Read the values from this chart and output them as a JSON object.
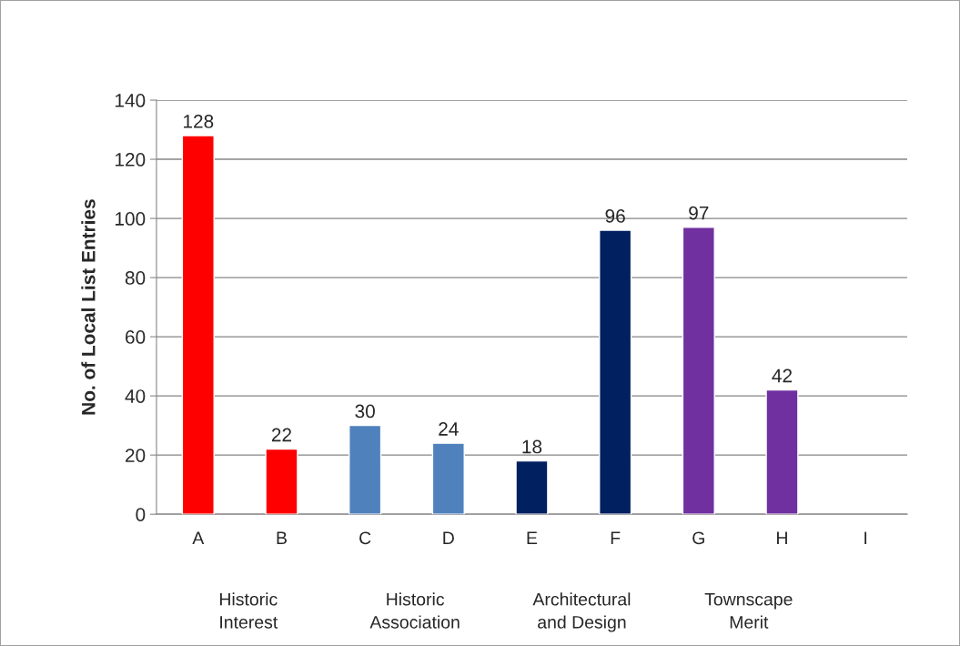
{
  "chart_data": {
    "type": "bar",
    "ylabel": "No. of Local List Entries",
    "categories": [
      "A",
      "B",
      "C",
      "D",
      "E",
      "F",
      "G",
      "H",
      "I"
    ],
    "values": [
      128,
      22,
      30,
      24,
      18,
      96,
      97,
      42,
      null
    ],
    "colors": [
      "#ff0000",
      "#ff0000",
      "#4f81bd",
      "#4f81bd",
      "#002060",
      "#002060",
      "#7030a0",
      "#7030a0",
      "#7030a0"
    ],
    "ylim": [
      0,
      140
    ],
    "yticks": [
      0,
      20,
      40,
      60,
      80,
      100,
      120,
      140
    ],
    "grid": "y",
    "data_labels": true,
    "annotations": [
      "Historic\nInterest",
      "Historic\nAssociation",
      "Architectural\nand Design",
      "Townscape\nMerit"
    ]
  }
}
